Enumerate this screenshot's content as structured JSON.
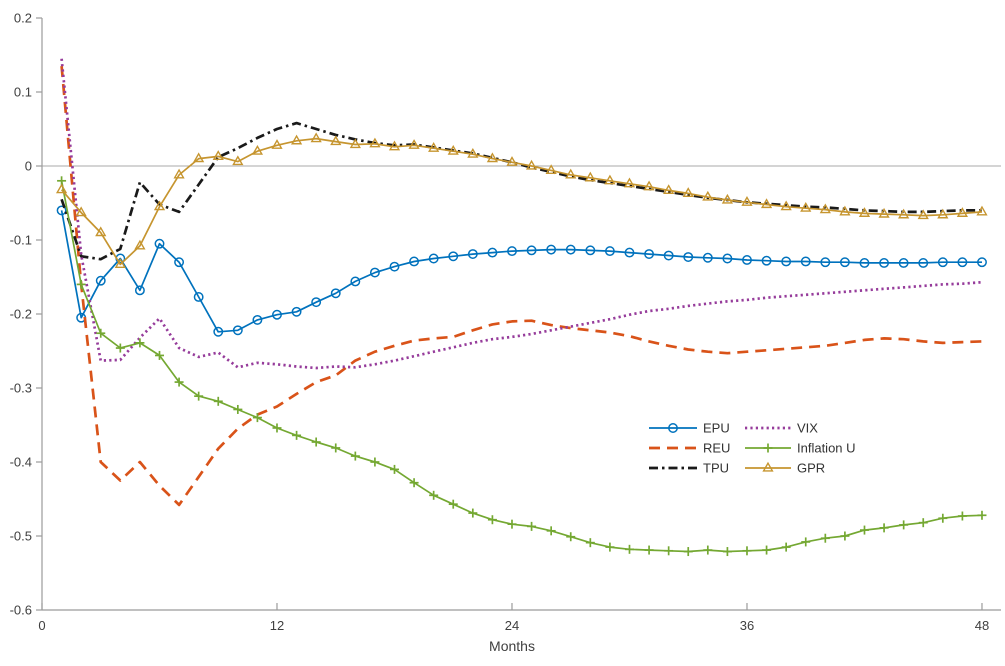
{
  "chart_data": {
    "type": "line",
    "title": "",
    "xlabel": "Months",
    "ylabel": "",
    "xlim": [
      0,
      49
    ],
    "ylim": [
      -0.6,
      0.2
    ],
    "xticks": [
      "0",
      "12",
      "24",
      "36",
      "48"
    ],
    "yticks": [
      "0.2",
      "0.1",
      "0",
      "-0.1",
      "-0.2",
      "-0.3",
      "-0.4",
      "-0.5",
      "-0.6"
    ],
    "grid": false,
    "zero_line": true,
    "legend_position": "inside-right",
    "axis_color": "#9b9b9b",
    "tick_label_color": "#3f3f3f",
    "zero_line_color": "#aaaaaa",
    "x": [
      1,
      2,
      3,
      4,
      5,
      6,
      7,
      8,
      9,
      10,
      11,
      12,
      13,
      14,
      15,
      16,
      17,
      18,
      19,
      20,
      21,
      22,
      23,
      24,
      25,
      26,
      27,
      28,
      29,
      30,
      31,
      32,
      33,
      34,
      35,
      36,
      37,
      38,
      39,
      40,
      41,
      42,
      43,
      44,
      45,
      46,
      47,
      48
    ],
    "series": [
      {
        "name": "EPU",
        "color": "#0072BD",
        "line": "solid",
        "marker": "circle",
        "values": [
          -0.06,
          -0.205,
          -0.155,
          -0.125,
          -0.168,
          -0.105,
          -0.13,
          -0.177,
          -0.224,
          -0.222,
          -0.208,
          -0.201,
          -0.197,
          -0.184,
          -0.172,
          -0.156,
          -0.144,
          -0.136,
          -0.129,
          -0.125,
          -0.122,
          -0.119,
          -0.117,
          -0.115,
          -0.114,
          -0.113,
          -0.113,
          -0.114,
          -0.115,
          -0.117,
          -0.119,
          -0.121,
          -0.123,
          -0.124,
          -0.125,
          -0.127,
          -0.128,
          -0.129,
          -0.129,
          -0.13,
          -0.13,
          -0.131,
          -0.131,
          -0.131,
          -0.131,
          -0.13,
          -0.13,
          -0.13
        ]
      },
      {
        "name": "REU",
        "color": "#D95319",
        "line": "dashed",
        "marker": "none",
        "values": [
          0.135,
          -0.16,
          -0.4,
          -0.425,
          -0.4,
          -0.432,
          -0.458,
          -0.42,
          -0.382,
          -0.355,
          -0.336,
          -0.325,
          -0.308,
          -0.292,
          -0.283,
          -0.263,
          -0.251,
          -0.243,
          -0.236,
          -0.233,
          -0.231,
          -0.222,
          -0.214,
          -0.21,
          -0.209,
          -0.215,
          -0.219,
          -0.222,
          -0.225,
          -0.23,
          -0.237,
          -0.243,
          -0.248,
          -0.251,
          -0.253,
          -0.251,
          -0.249,
          -0.247,
          -0.245,
          -0.243,
          -0.239,
          -0.235,
          -0.233,
          -0.234,
          -0.237,
          -0.239,
          -0.238,
          -0.237
        ]
      },
      {
        "name": "TPU",
        "color": "#1a1a1a",
        "line": "dashdot",
        "marker": "none",
        "values": [
          -0.045,
          -0.122,
          -0.126,
          -0.112,
          -0.022,
          -0.052,
          -0.062,
          -0.025,
          0.012,
          0.024,
          0.038,
          0.05,
          0.058,
          0.05,
          0.042,
          0.036,
          0.031,
          0.028,
          0.029,
          0.025,
          0.021,
          0.017,
          0.011,
          0.005,
          -0.002,
          -0.008,
          -0.014,
          -0.019,
          -0.023,
          -0.027,
          -0.031,
          -0.035,
          -0.039,
          -0.043,
          -0.046,
          -0.049,
          -0.051,
          -0.053,
          -0.055,
          -0.056,
          -0.058,
          -0.06,
          -0.061,
          -0.062,
          -0.062,
          -0.061,
          -0.06,
          -0.06
        ]
      },
      {
        "name": "VIX",
        "color": "#963C9B",
        "line": "dotted",
        "marker": "none",
        "values": [
          0.145,
          -0.12,
          -0.263,
          -0.262,
          -0.232,
          -0.206,
          -0.246,
          -0.258,
          -0.252,
          -0.272,
          -0.266,
          -0.268,
          -0.271,
          -0.273,
          -0.271,
          -0.272,
          -0.268,
          -0.263,
          -0.257,
          -0.251,
          -0.245,
          -0.239,
          -0.234,
          -0.231,
          -0.227,
          -0.222,
          -0.217,
          -0.212,
          -0.207,
          -0.201,
          -0.196,
          -0.193,
          -0.189,
          -0.186,
          -0.183,
          -0.181,
          -0.178,
          -0.176,
          -0.174,
          -0.172,
          -0.17,
          -0.168,
          -0.166,
          -0.164,
          -0.162,
          -0.16,
          -0.159,
          -0.157
        ]
      },
      {
        "name": "Inflation U",
        "color": "#74A832",
        "line": "solid",
        "marker": "plus",
        "values": [
          -0.02,
          -0.16,
          -0.226,
          -0.246,
          -0.239,
          -0.256,
          -0.292,
          -0.311,
          -0.318,
          -0.329,
          -0.34,
          -0.354,
          -0.364,
          -0.373,
          -0.381,
          -0.392,
          -0.4,
          -0.41,
          -0.428,
          -0.445,
          -0.457,
          -0.469,
          -0.478,
          -0.484,
          -0.487,
          -0.493,
          -0.501,
          -0.509,
          -0.515,
          -0.518,
          -0.519,
          -0.52,
          -0.521,
          -0.519,
          -0.521,
          -0.52,
          -0.519,
          -0.515,
          -0.508,
          -0.503,
          -0.5,
          -0.492,
          -0.489,
          -0.485,
          -0.482,
          -0.476,
          -0.473,
          -0.472
        ]
      },
      {
        "name": "GPR",
        "color": "#C6952F",
        "line": "solid",
        "marker": "triangle",
        "values": [
          -0.032,
          -0.063,
          -0.09,
          -0.133,
          -0.108,
          -0.055,
          -0.012,
          0.01,
          0.013,
          0.006,
          0.02,
          0.028,
          0.034,
          0.037,
          0.033,
          0.029,
          0.03,
          0.026,
          0.028,
          0.024,
          0.02,
          0.016,
          0.01,
          0.005,
          0.0,
          -0.006,
          -0.012,
          -0.016,
          -0.02,
          -0.024,
          -0.028,
          -0.033,
          -0.037,
          -0.042,
          -0.046,
          -0.049,
          -0.052,
          -0.055,
          -0.057,
          -0.059,
          -0.062,
          -0.064,
          -0.065,
          -0.066,
          -0.067,
          -0.066,
          -0.064,
          -0.062
        ]
      }
    ],
    "legend": {
      "columns": [
        [
          "EPU",
          "REU",
          "TPU"
        ],
        [
          "VIX",
          "Inflation U",
          "GPR"
        ]
      ],
      "text_color": "#333333"
    }
  }
}
